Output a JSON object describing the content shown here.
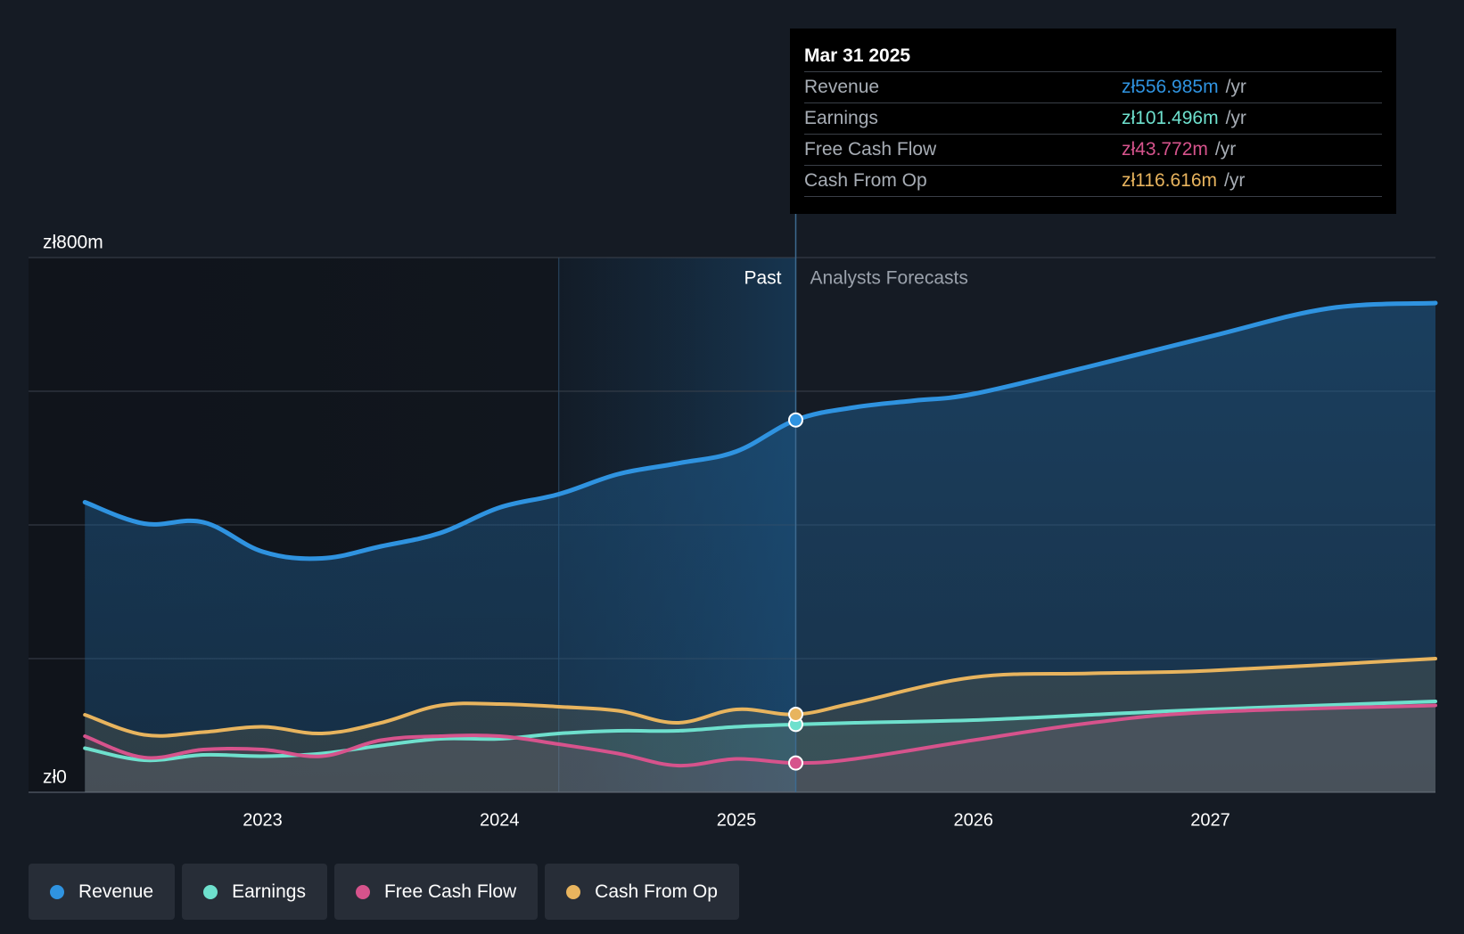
{
  "chart_data": {
    "type": "line",
    "x_range": [
      2022.2,
      2027.95
    ],
    "ylim": [
      0,
      800
    ],
    "y_tick_labels": [
      {
        "value": 800,
        "label": "zł800m"
      },
      {
        "value": 0,
        "label": "zł0"
      }
    ],
    "gridlines": [
      200,
      400,
      600
    ],
    "x_ticks": [
      {
        "value": 2023,
        "label": "2023"
      },
      {
        "value": 2024,
        "label": "2024"
      },
      {
        "value": 2025,
        "label": "2025"
      },
      {
        "value": 2026,
        "label": "2026"
      },
      {
        "value": 2027,
        "label": "2027"
      }
    ],
    "past_label": "Past",
    "forecast_label": "Analysts Forecasts",
    "divider_x": 2025.25,
    "highlight_start_x": 2024.25,
    "series": [
      {
        "name": "Revenue",
        "color": "#2f93e0",
        "points": [
          [
            2022.25,
            434
          ],
          [
            2022.5,
            402
          ],
          [
            2022.75,
            404
          ],
          [
            2023.0,
            360
          ],
          [
            2023.25,
            350
          ],
          [
            2023.5,
            368
          ],
          [
            2023.75,
            388
          ],
          [
            2024.0,
            426
          ],
          [
            2024.25,
            446
          ],
          [
            2024.5,
            476
          ],
          [
            2024.75,
            492
          ],
          [
            2025.0,
            510
          ],
          [
            2025.25,
            557
          ],
          [
            2025.5,
            576
          ],
          [
            2025.75,
            586
          ],
          [
            2026.0,
            596
          ],
          [
            2026.5,
            638
          ],
          [
            2027.0,
            682
          ],
          [
            2027.5,
            724
          ],
          [
            2027.95,
            732
          ]
        ]
      },
      {
        "name": "Earnings",
        "color": "#6ee0cd",
        "points": [
          [
            2022.25,
            66
          ],
          [
            2022.5,
            48
          ],
          [
            2022.75,
            56
          ],
          [
            2023.0,
            54
          ],
          [
            2023.25,
            58
          ],
          [
            2023.5,
            70
          ],
          [
            2023.75,
            80
          ],
          [
            2024.0,
            80
          ],
          [
            2024.25,
            88
          ],
          [
            2024.5,
            92
          ],
          [
            2024.75,
            92
          ],
          [
            2025.0,
            98
          ],
          [
            2025.25,
            101.5
          ],
          [
            2025.5,
            104
          ],
          [
            2026.0,
            108
          ],
          [
            2026.5,
            116
          ],
          [
            2027.0,
            124
          ],
          [
            2027.95,
            136
          ]
        ]
      },
      {
        "name": "Free Cash Flow",
        "color": "#d6538c",
        "points": [
          [
            2022.25,
            84
          ],
          [
            2022.5,
            52
          ],
          [
            2022.75,
            64
          ],
          [
            2023.0,
            64
          ],
          [
            2023.25,
            54
          ],
          [
            2023.5,
            78
          ],
          [
            2023.75,
            84
          ],
          [
            2024.0,
            84
          ],
          [
            2024.25,
            72
          ],
          [
            2024.5,
            58
          ],
          [
            2024.75,
            40
          ],
          [
            2025.0,
            50
          ],
          [
            2025.25,
            43.8
          ],
          [
            2025.5,
            50
          ],
          [
            2026.0,
            78
          ],
          [
            2026.5,
            104
          ],
          [
            2027.0,
            120
          ],
          [
            2027.95,
            130
          ]
        ]
      },
      {
        "name": "Cash From Op",
        "color": "#e8b45e",
        "points": [
          [
            2022.25,
            116
          ],
          [
            2022.5,
            86
          ],
          [
            2022.75,
            90
          ],
          [
            2023.0,
            98
          ],
          [
            2023.25,
            88
          ],
          [
            2023.5,
            104
          ],
          [
            2023.75,
            130
          ],
          [
            2024.0,
            132
          ],
          [
            2024.25,
            128
          ],
          [
            2024.5,
            122
          ],
          [
            2024.75,
            104
          ],
          [
            2025.0,
            124
          ],
          [
            2025.25,
            116.6
          ],
          [
            2025.5,
            134
          ],
          [
            2026.0,
            172
          ],
          [
            2026.5,
            178
          ],
          [
            2027.0,
            182
          ],
          [
            2027.95,
            200
          ]
        ]
      }
    ]
  },
  "tooltip": {
    "date": "Mar 31 2025",
    "rows": [
      {
        "name": "Revenue",
        "value": "zł556.985m",
        "unit": "/yr",
        "color": "#2f93e0"
      },
      {
        "name": "Earnings",
        "value": "zł101.496m",
        "unit": "/yr",
        "color": "#6ee0cd"
      },
      {
        "name": "Free Cash Flow",
        "value": "zł43.772m",
        "unit": "/yr",
        "color": "#d6538c"
      },
      {
        "name": "Cash From Op",
        "value": "zł116.616m",
        "unit": "/yr",
        "color": "#e8b45e"
      }
    ]
  },
  "legend": [
    {
      "label": "Revenue",
      "color": "#2f93e0"
    },
    {
      "label": "Earnings",
      "color": "#6ee0cd"
    },
    {
      "label": "Free Cash Flow",
      "color": "#d6538c"
    },
    {
      "label": "Cash From Op",
      "color": "#e8b45e"
    }
  ]
}
